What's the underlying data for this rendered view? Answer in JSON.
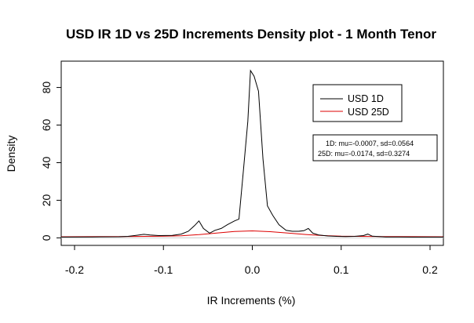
{
  "chart_data": {
    "type": "line",
    "title": "USD IR 1D vs 25D Increments Density plot - 1 Month Tenor",
    "xlabel": "IR Increments (%)",
    "ylabel": "Density",
    "xlim": [
      -0.215,
      0.215
    ],
    "ylim": [
      -4,
      94
    ],
    "x_ticks": [
      -0.2,
      -0.1,
      0.0,
      0.1,
      0.2
    ],
    "x_tick_labels": [
      "-0.2",
      "-0.1",
      "0.0",
      "0.1",
      "0.2"
    ],
    "y_ticks": [
      0,
      20,
      40,
      60,
      80
    ],
    "y_tick_labels": [
      "0",
      "20",
      "40",
      "60",
      "80"
    ],
    "legend": {
      "position": "top-right",
      "entries": [
        {
          "label": "USD 1D",
          "color": "#000000"
        },
        {
          "label": "USD 25D",
          "color": "#dd0000"
        }
      ]
    },
    "stats_box": {
      "line1": "1D: mu=-0.0007, sd=0.0564",
      "line2": "25D: mu=-0.0174, sd=0.3274"
    },
    "series": [
      {
        "name": "USD 1D",
        "color": "#000000",
        "points": [
          [
            -0.215,
            0.4
          ],
          [
            -0.18,
            0.5
          ],
          [
            -0.15,
            0.6
          ],
          [
            -0.14,
            0.8
          ],
          [
            -0.13,
            1.4
          ],
          [
            -0.122,
            1.9
          ],
          [
            -0.115,
            1.5
          ],
          [
            -0.105,
            1.2
          ],
          [
            -0.09,
            1.3
          ],
          [
            -0.08,
            2.0
          ],
          [
            -0.072,
            3.5
          ],
          [
            -0.065,
            6.5
          ],
          [
            -0.06,
            9.0
          ],
          [
            -0.055,
            5.0
          ],
          [
            -0.048,
            2.5
          ],
          [
            -0.042,
            4.0
          ],
          [
            -0.035,
            5.0
          ],
          [
            -0.028,
            7.0
          ],
          [
            -0.02,
            9.0
          ],
          [
            -0.015,
            10.0
          ],
          [
            -0.01,
            36.0
          ],
          [
            -0.005,
            62.0
          ],
          [
            -0.002,
            89.0
          ],
          [
            0.002,
            86.0
          ],
          [
            0.007,
            78.0
          ],
          [
            0.012,
            42.0
          ],
          [
            0.017,
            17.0
          ],
          [
            0.023,
            12.0
          ],
          [
            0.03,
            7.0
          ],
          [
            0.038,
            4.0
          ],
          [
            0.045,
            3.5
          ],
          [
            0.052,
            3.5
          ],
          [
            0.058,
            3.8
          ],
          [
            0.063,
            5.0
          ],
          [
            0.068,
            2.5
          ],
          [
            0.075,
            1.5
          ],
          [
            0.085,
            1.0
          ],
          [
            0.095,
            0.8
          ],
          [
            0.105,
            0.7
          ],
          [
            0.115,
            0.8
          ],
          [
            0.125,
            1.2
          ],
          [
            0.13,
            2.0
          ],
          [
            0.135,
            0.9
          ],
          [
            0.15,
            0.5
          ],
          [
            0.18,
            0.4
          ],
          [
            0.215,
            0.4
          ]
        ]
      },
      {
        "name": "USD 25D",
        "color": "#dd0000",
        "points": [
          [
            -0.215,
            0.6
          ],
          [
            -0.15,
            0.7
          ],
          [
            -0.12,
            0.8
          ],
          [
            -0.1,
            0.9
          ],
          [
            -0.08,
            1.1
          ],
          [
            -0.06,
            1.7
          ],
          [
            -0.04,
            2.6
          ],
          [
            -0.02,
            3.4
          ],
          [
            0.0,
            3.7
          ],
          [
            0.02,
            3.3
          ],
          [
            0.04,
            2.6
          ],
          [
            0.06,
            1.8
          ],
          [
            0.08,
            1.2
          ],
          [
            0.1,
            0.9
          ],
          [
            0.12,
            0.8
          ],
          [
            0.15,
            0.7
          ],
          [
            0.215,
            0.6
          ]
        ]
      }
    ]
  }
}
